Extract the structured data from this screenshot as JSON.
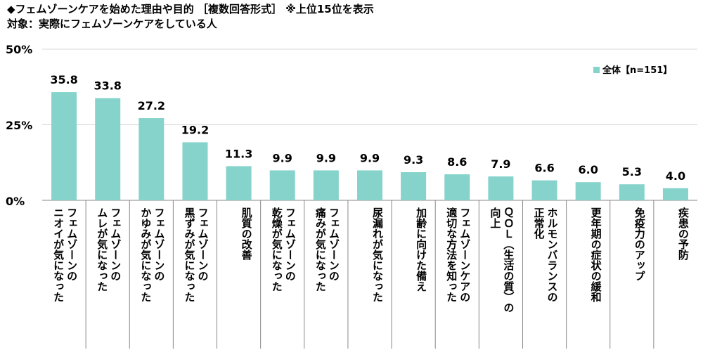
{
  "chart_data": {
    "type": "bar",
    "title": "◆フェムゾーンケアを始めた理由や目的 ［複数回答形式］ ※上位15位を表示",
    "subtitle": "対象：実際にフェムゾーンケアをしている人",
    "yticks": [
      "50%",
      "25%",
      "0%"
    ],
    "ylim": [
      0,
      50
    ],
    "legend": {
      "label": "全体【n=151】",
      "position": "top-right"
    },
    "colors": {
      "bar": "#86d3cb",
      "grid": "#d9d9d9",
      "axis": "#888888"
    },
    "categories": [
      "フェムゾーンの\nニオイが気になった",
      "フェムゾーンの\nムレが気になった",
      "フェムゾーンの\nかゆみが気になった",
      "フェムゾーンの\n黒ずみが気になった",
      "肌質の改善",
      "フェムゾーンの\n乾燥が気になった",
      "フェムゾーンの\n痛みが気になった",
      "尿漏れが気になった",
      "加齢に向けた備え",
      "フェムゾーンケアの\n適切な方法を知った",
      "ＱＯＬ（生活の質）の\n向上",
      "ホルモンバランスの\n正常化",
      "更年期の症状の緩和",
      "免疫力のアップ",
      "疾患の予防"
    ],
    "values": [
      35.8,
      33.8,
      27.2,
      19.2,
      11.3,
      9.9,
      9.9,
      9.9,
      9.3,
      8.6,
      7.9,
      6.6,
      6.0,
      5.3,
      4.0
    ],
    "value_labels": [
      "35.8",
      "33.8",
      "27.2",
      "19.2",
      "11.3",
      "9.9",
      "9.9",
      "9.9",
      "9.3",
      "8.6",
      "7.9",
      "6.6",
      "6.0",
      "5.3",
      "4.0"
    ]
  }
}
